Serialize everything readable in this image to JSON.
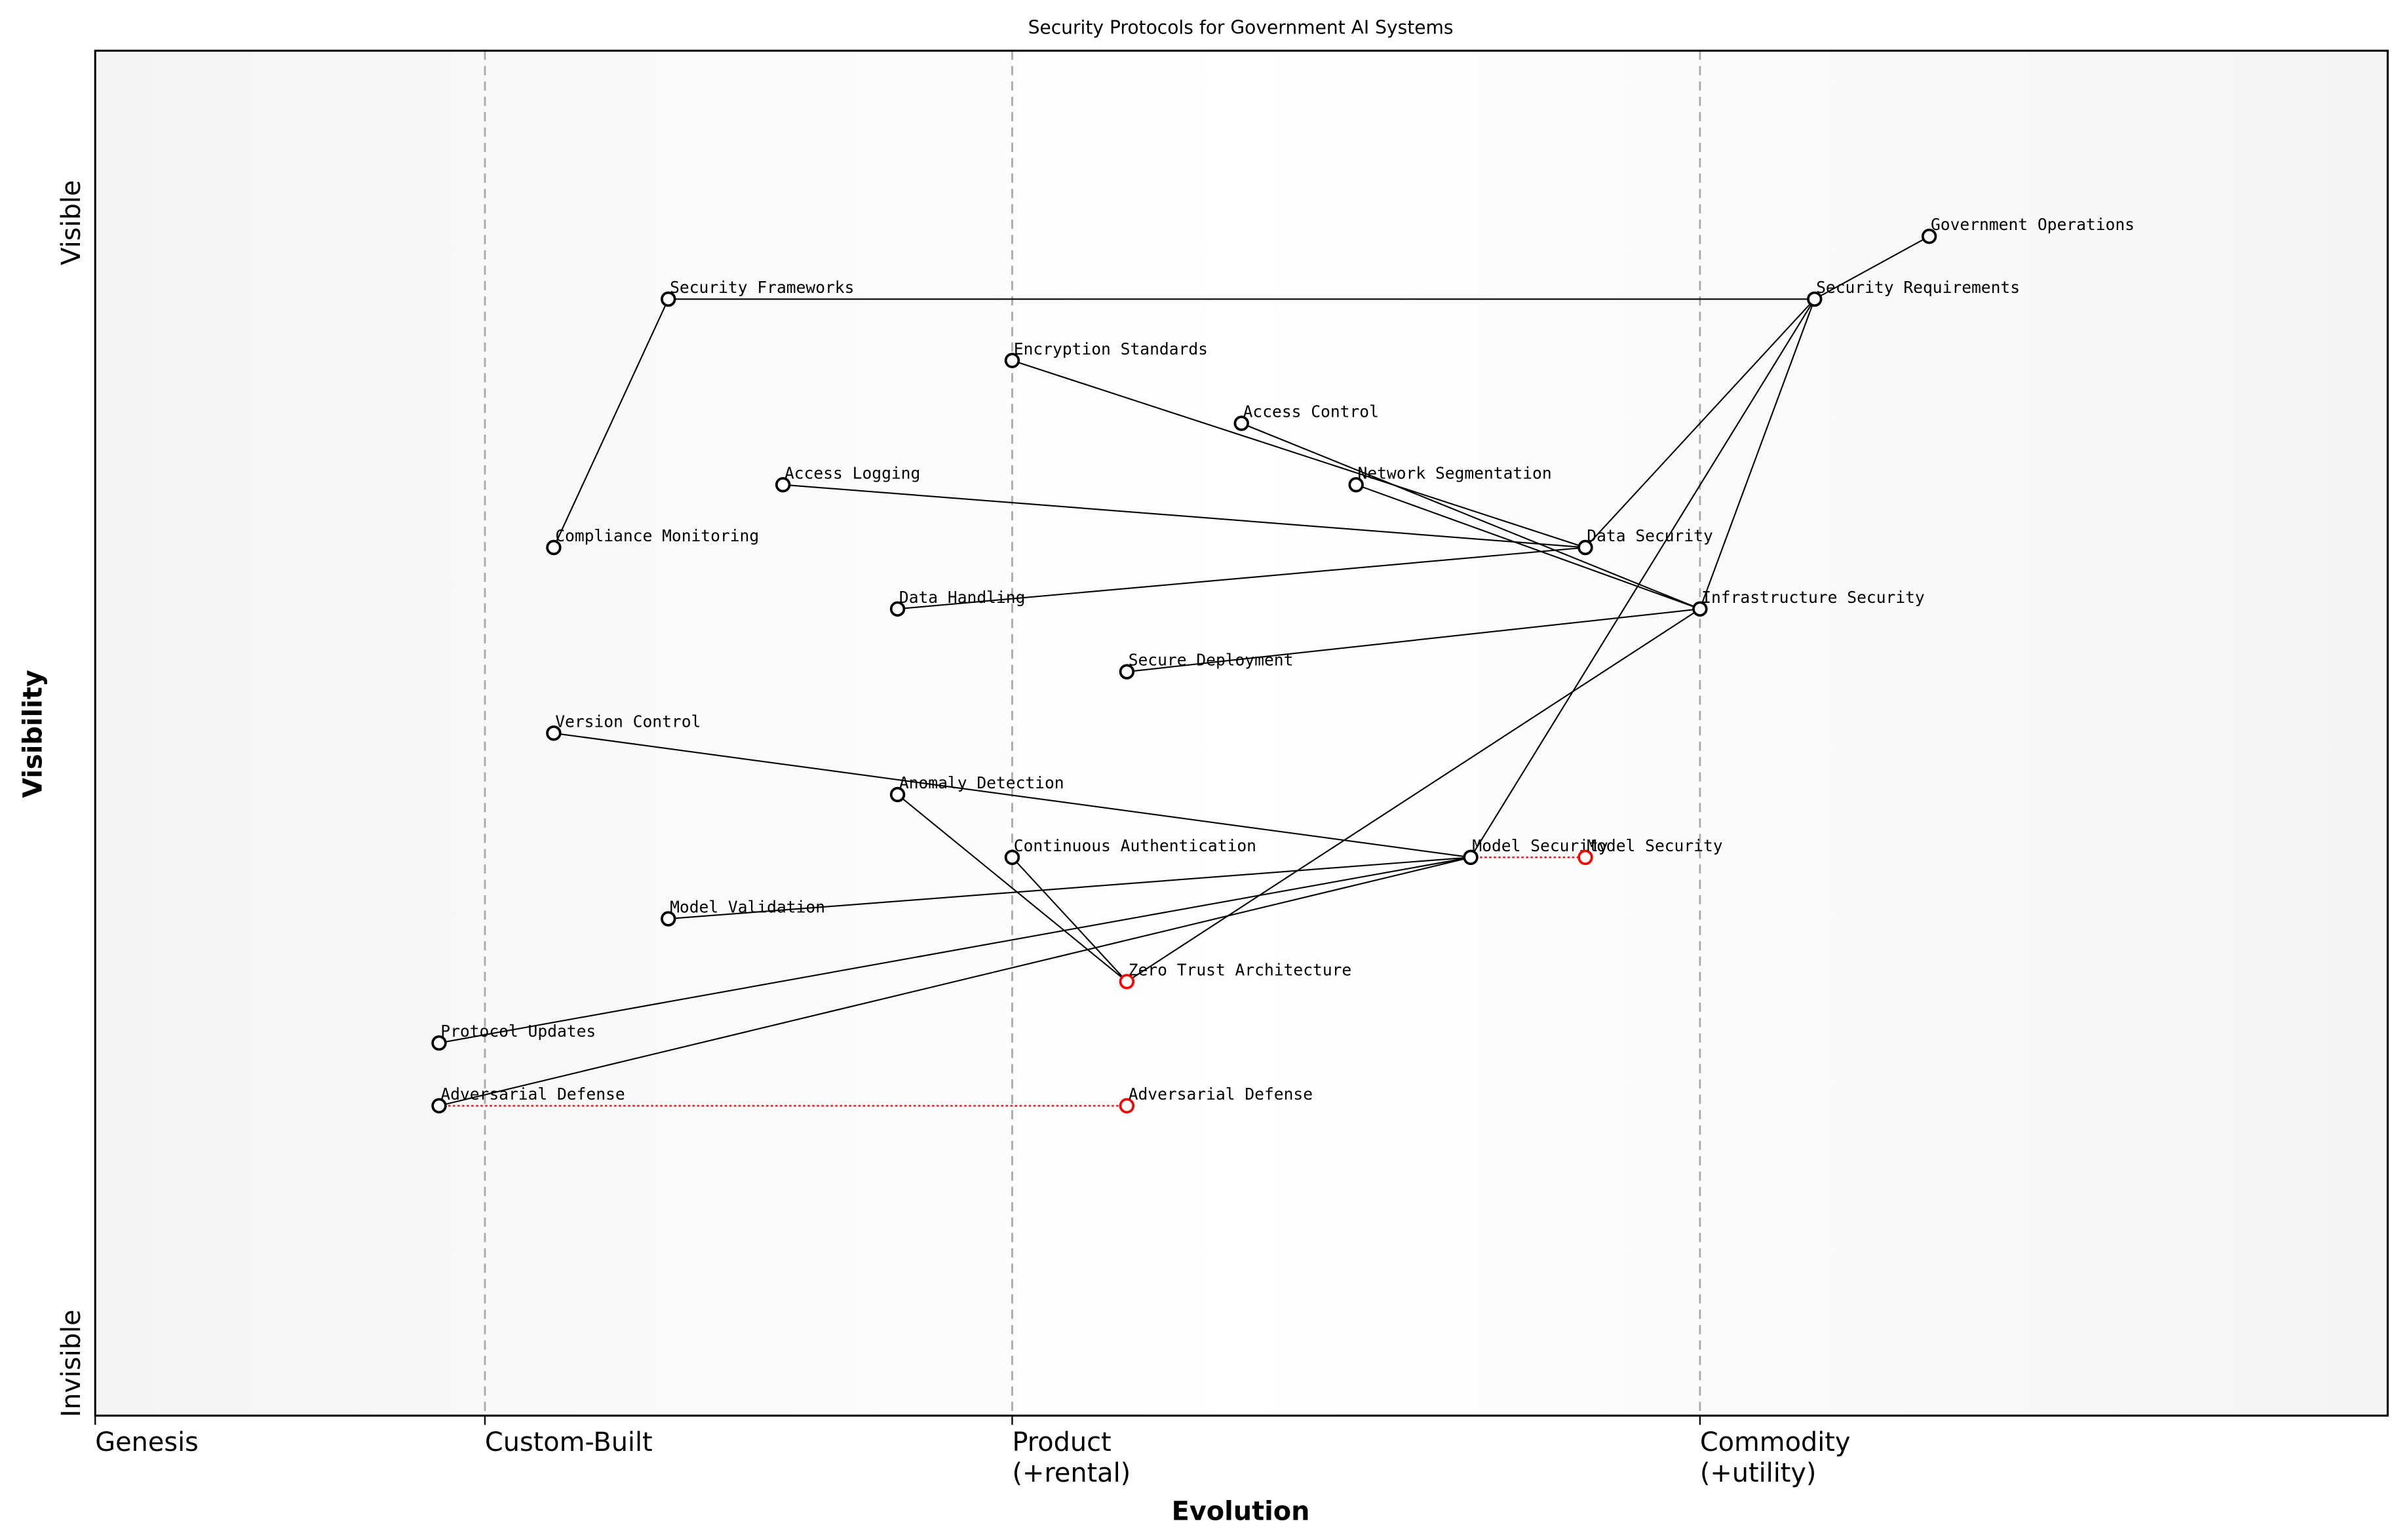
{
  "chart_data": {
    "type": "scatter",
    "title": "Security Protocols for Government AI Systems",
    "xlabel": "Evolution",
    "ylabel": "Visibility",
    "xlim": [
      0,
      1
    ],
    "ylim": [
      0,
      1
    ],
    "x_stages": [
      {
        "label": "Genesis",
        "x": 0.0
      },
      {
        "label": "Custom-Built",
        "x": 0.17
      },
      {
        "label": "Product\n(+rental)",
        "x": 0.4
      },
      {
        "label": "Commodity\n(+utility)",
        "x": 0.7
      }
    ],
    "y_labels": {
      "top": "Visible",
      "bottom": "Invisible"
    },
    "components": [
      {
        "name": "Government Operations",
        "evolution": 0.8,
        "visibility": 0.864
      },
      {
        "name": "Security Requirements",
        "evolution": 0.75,
        "visibility": 0.818
      },
      {
        "name": "Security Frameworks",
        "evolution": 0.25,
        "visibility": 0.818
      },
      {
        "name": "Encryption Standards",
        "evolution": 0.4,
        "visibility": 0.773
      },
      {
        "name": "Access Control",
        "evolution": 0.5,
        "visibility": 0.727
      },
      {
        "name": "Access Logging",
        "evolution": 0.3,
        "visibility": 0.682
      },
      {
        "name": "Network Segmentation",
        "evolution": 0.55,
        "visibility": 0.682
      },
      {
        "name": "Compliance Monitoring",
        "evolution": 0.2,
        "visibility": 0.636
      },
      {
        "name": "Data Security",
        "evolution": 0.65,
        "visibility": 0.636
      },
      {
        "name": "Data Handling",
        "evolution": 0.35,
        "visibility": 0.591
      },
      {
        "name": "Infrastructure Security",
        "evolution": 0.7,
        "visibility": 0.591
      },
      {
        "name": "Secure Deployment",
        "evolution": 0.45,
        "visibility": 0.545
      },
      {
        "name": "Version Control",
        "evolution": 0.2,
        "visibility": 0.5
      },
      {
        "name": "Anomaly Detection",
        "evolution": 0.35,
        "visibility": 0.455
      },
      {
        "name": "Continuous Authentication",
        "evolution": 0.4,
        "visibility": 0.409
      },
      {
        "name": "Model Security",
        "evolution": 0.6,
        "visibility": 0.409
      },
      {
        "name": "Model Validation",
        "evolution": 0.25,
        "visibility": 0.364
      },
      {
        "name": "Zero Trust Architecture",
        "evolution": 0.45,
        "visibility": 0.318,
        "evolving": true
      },
      {
        "name": "Protocol Updates",
        "evolution": 0.15,
        "visibility": 0.273
      },
      {
        "name": "Adversarial Defense",
        "evolution": 0.15,
        "visibility": 0.227
      }
    ],
    "evolved": [
      {
        "name": "Model Security",
        "from": 0.6,
        "evolution": 0.65,
        "visibility": 0.409
      },
      {
        "name": "Adversarial Defense",
        "from": 0.15,
        "evolution": 0.45,
        "visibility": 0.227
      }
    ],
    "links": [
      [
        "Government Operations",
        "Security Requirements"
      ],
      [
        "Security Requirements",
        "Security Frameworks"
      ],
      [
        "Security Requirements",
        "Data Security"
      ],
      [
        "Security Requirements",
        "Infrastructure Security"
      ],
      [
        "Security Requirements",
        "Model Security"
      ],
      [
        "Security Frameworks",
        "Compliance Monitoring"
      ],
      [
        "Encryption Standards",
        "Data Security"
      ],
      [
        "Access Control",
        "Infrastructure Security"
      ],
      [
        "Network Segmentation",
        "Infrastructure Security"
      ],
      [
        "Access Logging",
        "Data Security"
      ],
      [
        "Data Handling",
        "Data Security"
      ],
      [
        "Secure Deployment",
        "Infrastructure Security"
      ],
      [
        "Infrastructure Security",
        "Zero Trust Architecture"
      ],
      [
        "Version Control",
        "Model Security"
      ],
      [
        "Model Validation",
        "Model Security"
      ],
      [
        "Protocol Updates",
        "Model Security"
      ],
      [
        "Adversarial Defense",
        "Model Security"
      ],
      [
        "Anomaly Detection",
        "Zero Trust Architecture"
      ],
      [
        "Continuous Authentication",
        "Zero Trust Architecture"
      ]
    ],
    "colors": {
      "node": "#000000",
      "evolved": "#ff0000",
      "link": "#000000",
      "stage_line": "#aaaaaa"
    }
  }
}
